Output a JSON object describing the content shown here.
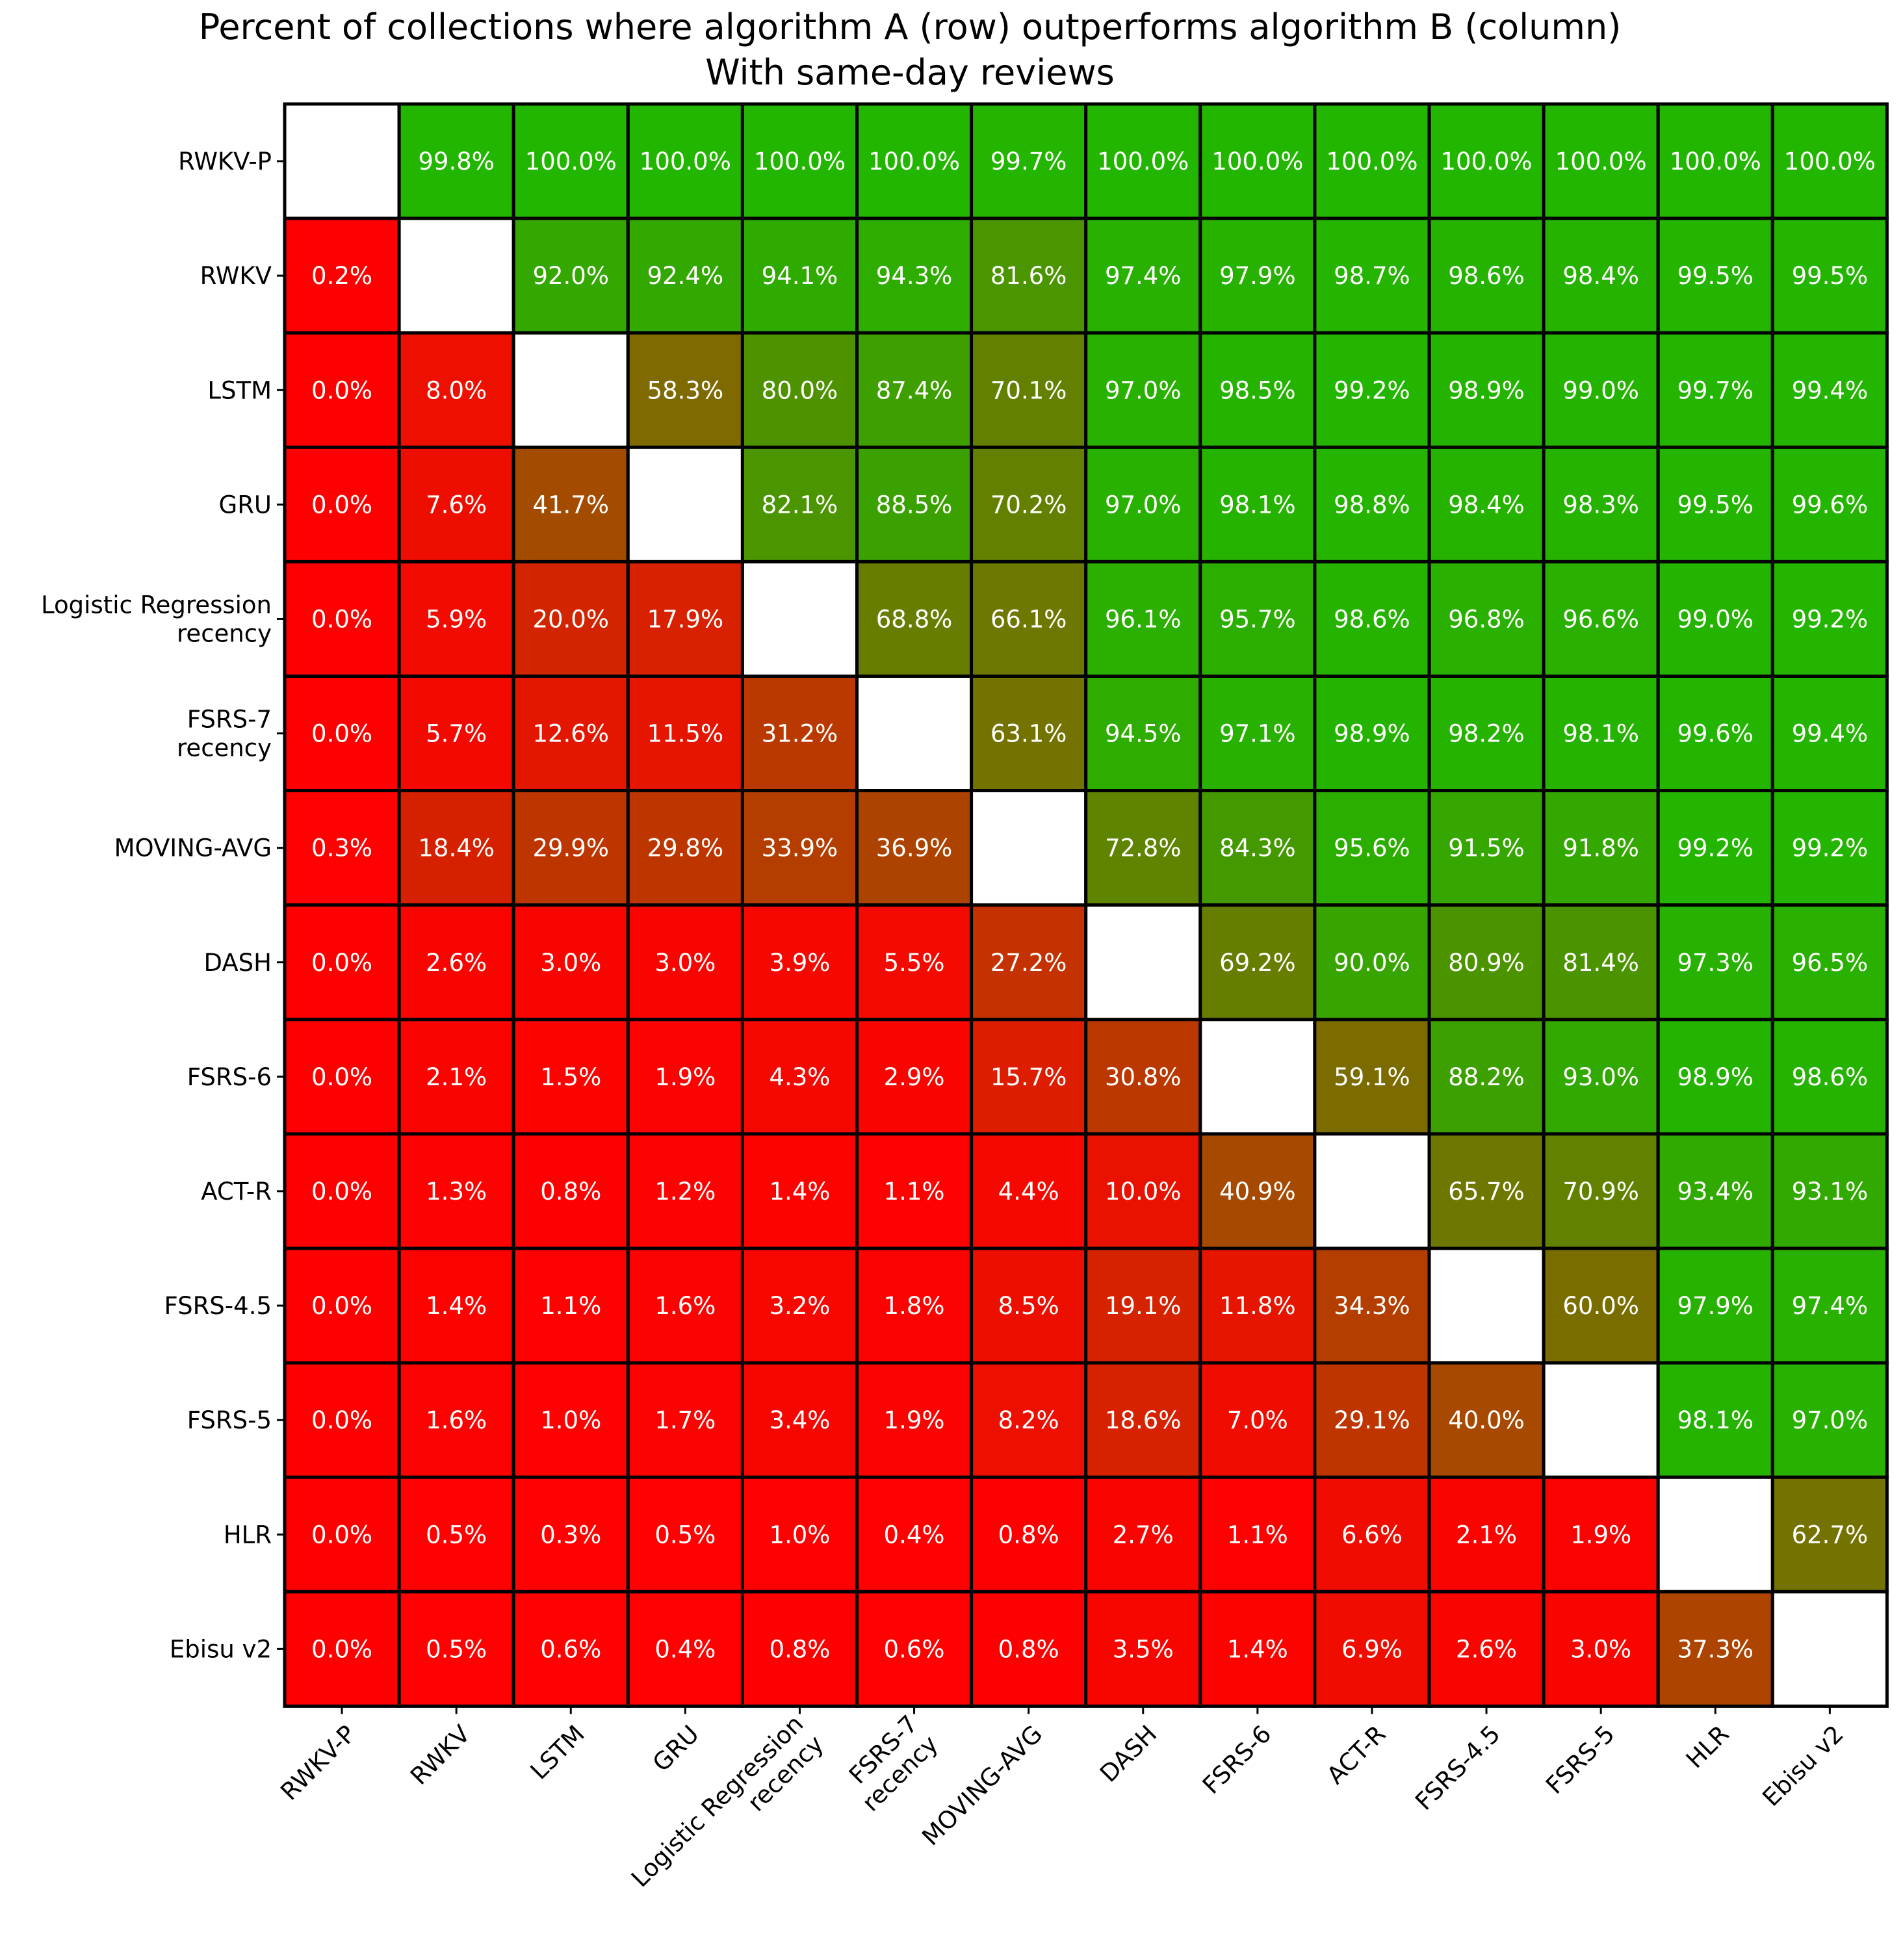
{
  "chart_data": {
    "type": "heatmap",
    "title": "Percent of collections where algorithm A (row) outperforms algorithm B (column)",
    "subtitle": "With same-day reviews",
    "rows": [
      "RWKV-P",
      "RWKV",
      "LSTM",
      "GRU",
      "Logistic Regression\nrecency",
      "FSRS-7\nrecency",
      "MOVING-AVG",
      "DASH",
      "FSRS-6",
      "ACT-R",
      "FSRS-4.5",
      "FSRS-5",
      "HLR",
      "Ebisu v2"
    ],
    "columns": [
      "RWKV-P",
      "RWKV",
      "LSTM",
      "GRU",
      "Logistic Regression\nrecency",
      "FSRS-7\nrecency",
      "MOVING-AVG",
      "DASH",
      "FSRS-6",
      "ACT-R",
      "FSRS-4.5",
      "FSRS-5",
      "HLR",
      "Ebisu v2"
    ],
    "values": [
      [
        null,
        99.8,
        100.0,
        100.0,
        100.0,
        100.0,
        99.7,
        100.0,
        100.0,
        100.0,
        100.0,
        100.0,
        100.0,
        100.0
      ],
      [
        0.2,
        null,
        92.0,
        92.4,
        94.1,
        94.3,
        81.6,
        97.4,
        97.9,
        98.7,
        98.6,
        98.4,
        99.5,
        99.5
      ],
      [
        0.0,
        8.0,
        null,
        58.3,
        80.0,
        87.4,
        70.1,
        97.0,
        98.5,
        99.2,
        98.9,
        99.0,
        99.7,
        99.4
      ],
      [
        0.0,
        7.6,
        41.7,
        null,
        82.1,
        88.5,
        70.2,
        97.0,
        98.1,
        98.8,
        98.4,
        98.3,
        99.5,
        99.6
      ],
      [
        0.0,
        5.9,
        20.0,
        17.9,
        null,
        68.8,
        66.1,
        96.1,
        95.7,
        98.6,
        96.8,
        96.6,
        99.0,
        99.2
      ],
      [
        0.0,
        5.7,
        12.6,
        11.5,
        31.2,
        null,
        63.1,
        94.5,
        97.1,
        98.9,
        98.2,
        98.1,
        99.6,
        99.4
      ],
      [
        0.3,
        18.4,
        29.9,
        29.8,
        33.9,
        36.9,
        null,
        72.8,
        84.3,
        95.6,
        91.5,
        91.8,
        99.2,
        99.2
      ],
      [
        0.0,
        2.6,
        3.0,
        3.0,
        3.9,
        5.5,
        27.2,
        null,
        69.2,
        90.0,
        80.9,
        81.4,
        97.3,
        96.5
      ],
      [
        0.0,
        2.1,
        1.5,
        1.9,
        4.3,
        2.9,
        15.7,
        30.8,
        null,
        59.1,
        88.2,
        93.0,
        98.9,
        98.6
      ],
      [
        0.0,
        1.3,
        0.8,
        1.2,
        1.4,
        1.1,
        4.4,
        10.0,
        40.9,
        null,
        65.7,
        70.9,
        93.4,
        93.1
      ],
      [
        0.0,
        1.4,
        1.1,
        1.6,
        3.2,
        1.8,
        8.5,
        19.1,
        11.8,
        34.3,
        null,
        60.0,
        97.9,
        97.4
      ],
      [
        0.0,
        1.6,
        1.0,
        1.7,
        3.4,
        1.9,
        8.2,
        18.6,
        7.0,
        29.1,
        40.0,
        null,
        98.1,
        97.0
      ],
      [
        0.0,
        0.5,
        0.3,
        0.5,
        1.0,
        0.4,
        0.8,
        2.7,
        1.1,
        6.6,
        2.1,
        1.9,
        null,
        62.7
      ],
      [
        0.0,
        0.5,
        0.6,
        0.4,
        0.8,
        0.6,
        0.8,
        3.5,
        1.4,
        6.9,
        2.6,
        3.0,
        37.3,
        null
      ]
    ],
    "value_suffix": "%",
    "colormap": {
      "low": "#ff0000",
      "high": "#22b600"
    },
    "cell_text_color": "#ffffff",
    "diagonal_color": "#ffffff",
    "grid": true,
    "legend": "none"
  }
}
